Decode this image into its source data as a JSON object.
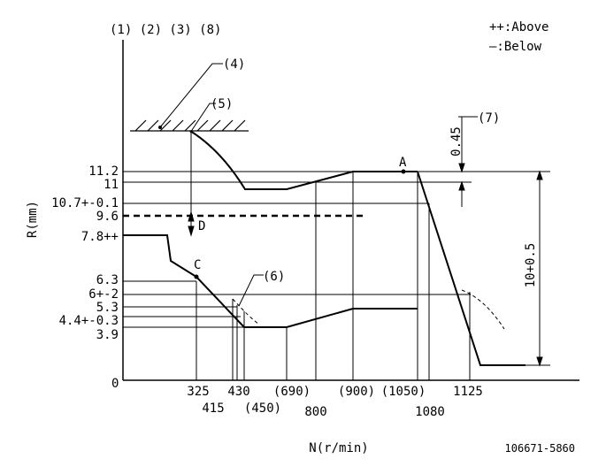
{
  "top_label": "(1) (2) (3) (8)",
  "legend": {
    "above": "++:Above",
    "below": "—:Below"
  },
  "axis": {
    "ylabel": "R(mm)",
    "xlabel": "N(r/min)",
    "origin": "0"
  },
  "y_ticks": [
    "11.2",
    "11",
    "10.7+-0.1",
    "9.6",
    "7.8++",
    "6.3",
    "6+-2",
    "5.3",
    "4.4+-0.3",
    "3.9"
  ],
  "x_ticks": {
    "row1": [
      "325",
      "430",
      "(690)",
      "(900)",
      "(1050)",
      "1125"
    ],
    "row2": [
      "415",
      "(450)",
      "800",
      "1080"
    ]
  },
  "callouts": {
    "c4": "(4)",
    "c5": "(5)",
    "c6": "(6)",
    "c7": "(7)",
    "A": "A",
    "C": "C",
    "D": "D"
  },
  "dimensions": {
    "gap": "0.45",
    "span": "10+0.5"
  },
  "code": "106671-5860"
}
